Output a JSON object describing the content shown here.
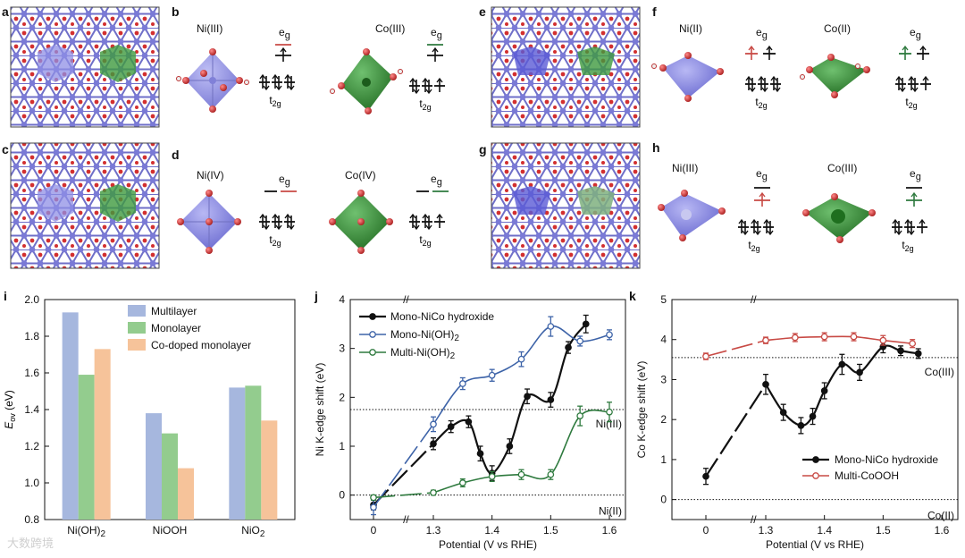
{
  "panels": {
    "a": "a",
    "b": "b",
    "c": "c",
    "d": "d",
    "e": "e",
    "f": "f",
    "g": "g",
    "h": "h",
    "i": "i",
    "j": "j",
    "k": "k"
  },
  "orbital": {
    "eg": "e",
    "eg_sub": "g",
    "t2g": "t",
    "t2g_sub": "2g"
  },
  "species": {
    "b_left": "Ni(III)",
    "b_right": "Co(III)",
    "d_left": "Ni(IV)",
    "d_right": "Co(IV)",
    "f_left": "Ni(II)",
    "f_right": "Co(II)",
    "h_left": "Ni(III)",
    "h_right": "Co(III)"
  },
  "colors": {
    "ni_poly": "#8f8fe6",
    "co_poly": "#3f9a3f",
    "oxygen": "#cc2a2a",
    "lattice": "#6f6fc8",
    "bar_multi": "#a6b7de",
    "bar_mono": "#93cc8e",
    "bar_codoped": "#f6c39a",
    "line_black": "#111111",
    "line_blue": "#3d63a8",
    "line_green": "#2e7a3e",
    "line_red": "#c84a45"
  },
  "watermark": "大数跨境",
  "chart_data": [
    {
      "panel": "i",
      "type": "bar",
      "categories": [
        "Ni(OH)2",
        "NiOOH",
        "NiO2"
      ],
      "category_labels": [
        {
          "main": "Ni(OH)",
          "sub": "2"
        },
        {
          "main": "NiOOH",
          "sub": ""
        },
        {
          "main": "NiO",
          "sub": "2"
        }
      ],
      "series": [
        {
          "name": "Multilayer",
          "values": [
            1.93,
            1.38,
            1.52
          ]
        },
        {
          "name": "Monolayer",
          "values": [
            1.59,
            1.27,
            1.53
          ]
        },
        {
          "name": "Co-doped monolayer",
          "values": [
            1.73,
            1.08,
            1.34
          ]
        }
      ],
      "ylabel_main": "E",
      "ylabel_sub": "ov",
      "ylabel_unit": " (eV)",
      "ylim": [
        0.8,
        2.0
      ],
      "yticks": [
        "0.8",
        "1.0",
        "1.2",
        "1.4",
        "1.6",
        "1.8",
        "2.0"
      ],
      "legend_position": "top-right"
    },
    {
      "panel": "j",
      "type": "line",
      "xlabel": "Potential (V vs RHE)",
      "ylabel": "Ni K-edge shift (eV)",
      "xticks": [
        "0",
        "1.3",
        "1.4",
        "1.5",
        "1.6"
      ],
      "yticks": [
        "0",
        "1",
        "2",
        "3",
        "4"
      ],
      "ylim": [
        -0.5,
        4
      ],
      "axis_break": "//",
      "series": [
        {
          "name": "Mono-NiCo hydroxide",
          "legend_main": "Mono-NiCo hydroxide",
          "legend_sub": "",
          "x": [
            0,
            1.3,
            1.33,
            1.36,
            1.38,
            1.4,
            1.43,
            1.46,
            1.5,
            1.53,
            1.56
          ],
          "y": [
            -0.2,
            1.05,
            1.4,
            1.5,
            0.85,
            0.45,
            1.0,
            2.02,
            1.95,
            3.02,
            3.5
          ],
          "err": [
            0.1,
            0.12,
            0.12,
            0.12,
            0.15,
            0.15,
            0.15,
            0.15,
            0.15,
            0.12,
            0.18
          ]
        },
        {
          "name": "Mono-Ni(OH)2",
          "legend_main": "Mono-Ni(OH)",
          "legend_sub": "2",
          "x": [
            0,
            1.3,
            1.35,
            1.4,
            1.45,
            1.5,
            1.55,
            1.6
          ],
          "y": [
            -0.25,
            1.45,
            2.28,
            2.45,
            2.78,
            3.45,
            3.15,
            3.28
          ],
          "err": [
            0.15,
            0.15,
            0.12,
            0.12,
            0.15,
            0.2,
            0.1,
            0.1
          ]
        },
        {
          "name": "Multi-Ni(OH)2",
          "legend_main": "Multi-Ni(OH)",
          "legend_sub": "2",
          "x": [
            0,
            1.3,
            1.35,
            1.4,
            1.45,
            1.5,
            1.55,
            1.6
          ],
          "y": [
            -0.05,
            0.05,
            0.25,
            0.38,
            0.42,
            0.42,
            1.62,
            1.7
          ],
          "err": [
            0.05,
            0.05,
            0.08,
            0.1,
            0.1,
            0.1,
            0.2,
            0.2
          ]
        }
      ],
      "reference_lines": [
        {
          "label": "Ni(III)",
          "y": 1.75
        },
        {
          "label": "Ni(II)",
          "y": 0
        }
      ],
      "legend_position": "top-left"
    },
    {
      "panel": "k",
      "type": "line",
      "xlabel": "Potential (V vs RHE)",
      "ylabel": "Co K-edge shift (eV)",
      "xticks": [
        "0",
        "1.3",
        "1.4",
        "1.5",
        "1.6"
      ],
      "yticks": [
        "0",
        "1",
        "2",
        "3",
        "4",
        "5"
      ],
      "ylim": [
        -0.5,
        5
      ],
      "axis_break": "//",
      "series": [
        {
          "name": "Mono-NiCo hydroxide",
          "legend_main": "Mono-NiCo hydroxide",
          "legend_sub": "",
          "x": [
            0,
            1.3,
            1.33,
            1.36,
            1.38,
            1.4,
            1.43,
            1.46,
            1.5,
            1.53,
            1.56
          ],
          "y": [
            0.58,
            2.88,
            2.18,
            1.85,
            2.08,
            2.72,
            3.38,
            3.18,
            3.82,
            3.72,
            3.65
          ],
          "err": [
            0.2,
            0.25,
            0.2,
            0.2,
            0.2,
            0.2,
            0.25,
            0.2,
            0.15,
            0.12,
            0.12
          ]
        },
        {
          "name": "Multi-CoOOH",
          "legend_main": "Multi-CoOOH",
          "legend_sub": "",
          "x": [
            0,
            1.3,
            1.35,
            1.4,
            1.45,
            1.5,
            1.55
          ],
          "y": [
            3.58,
            3.98,
            4.05,
            4.07,
            4.07,
            3.98,
            3.9
          ],
          "err": [
            0.08,
            0.08,
            0.1,
            0.1,
            0.1,
            0.12,
            0.1
          ]
        }
      ],
      "reference_lines": [
        {
          "label": "Co(III)",
          "y": 3.55
        },
        {
          "label": "Co(II)",
          "y": 0
        }
      ],
      "legend_position": "bottom-right"
    }
  ]
}
